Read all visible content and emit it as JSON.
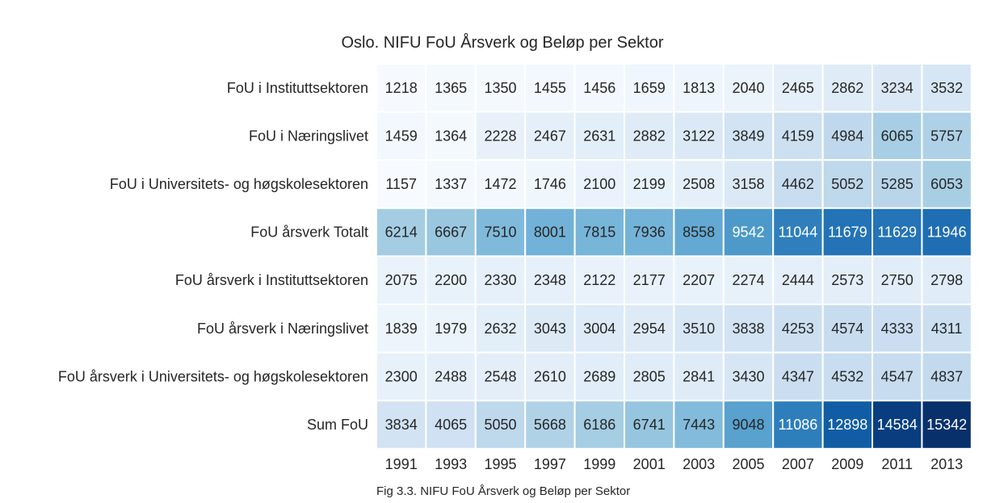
{
  "chart_data": {
    "type": "heatmap",
    "title": "Oslo. NIFU FoU Årsverk og Beløp per Sektor",
    "caption": "Fig 3.3. NIFU FoU Årsverk og Beløp per Sektor",
    "colormap": "Blues",
    "color_range": [
      1157,
      15342
    ],
    "x_labels": [
      "1991",
      "1993",
      "1995",
      "1997",
      "1999",
      "2001",
      "2003",
      "2005",
      "2007",
      "2009",
      "2011",
      "2013"
    ],
    "y_labels": [
      "FoU i Instituttsektoren",
      "FoU i Næringslivet",
      "FoU i Universitets- og høgskolesektoren",
      "FoU årsverk Totalt",
      "FoU årsverk i Instituttsektoren",
      "FoU årsverk i Næringslivet",
      "FoU årsverk i Universitets- og høgskolesektoren",
      "Sum FoU"
    ],
    "values": [
      [
        1218,
        1365,
        1350,
        1455,
        1456,
        1659,
        1813,
        2040,
        2465,
        2862,
        3234,
        3532
      ],
      [
        1459,
        1364,
        2228,
        2467,
        2631,
        2882,
        3122,
        3849,
        4159,
        4984,
        6065,
        5757
      ],
      [
        1157,
        1337,
        1472,
        1746,
        2100,
        2199,
        2508,
        3158,
        4462,
        5052,
        5285,
        6053
      ],
      [
        6214,
        6667,
        7510,
        8001,
        7815,
        7936,
        8558,
        9542,
        11044,
        11679,
        11629,
        11946
      ],
      [
        2075,
        2200,
        2330,
        2348,
        2122,
        2177,
        2207,
        2274,
        2444,
        2573,
        2750,
        2798
      ],
      [
        1839,
        1979,
        2632,
        3043,
        3004,
        2954,
        3510,
        3838,
        4253,
        4574,
        4333,
        4311
      ],
      [
        2300,
        2488,
        2548,
        2610,
        2689,
        2805,
        2841,
        3430,
        4347,
        4532,
        4547,
        4837
      ],
      [
        3834,
        4065,
        5050,
        5668,
        6186,
        6741,
        7443,
        9048,
        11086,
        12898,
        14584,
        15342
      ]
    ],
    "annotated": true,
    "grid_lines": "white"
  }
}
